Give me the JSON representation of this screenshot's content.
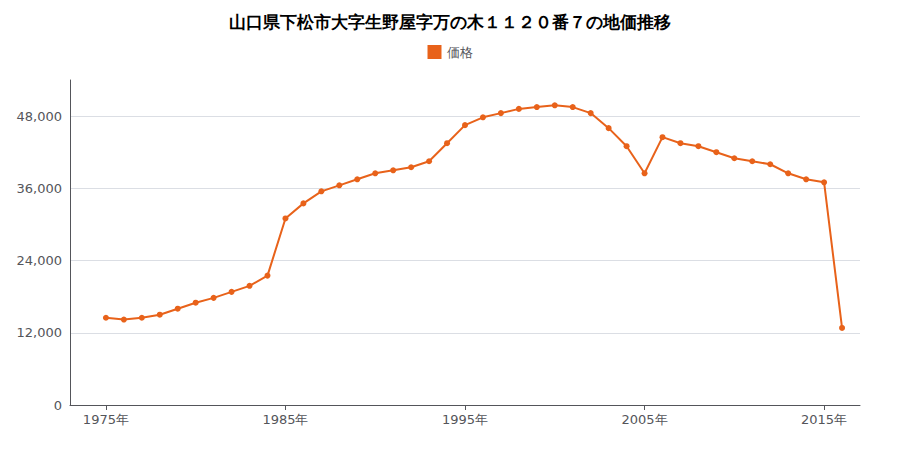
{
  "chart_data": {
    "type": "line",
    "title": "山口県下松市大字生野屋字万の木１１２０番７の地価推移",
    "x": [
      1975,
      1976,
      1977,
      1978,
      1979,
      1980,
      1981,
      1982,
      1983,
      1984,
      1985,
      1986,
      1987,
      1988,
      1989,
      1990,
      1991,
      1992,
      1993,
      1994,
      1995,
      1996,
      1997,
      1998,
      1999,
      2000,
      2001,
      2002,
      2003,
      2004,
      2005,
      2006,
      2007,
      2008,
      2009,
      2010,
      2011,
      2012,
      2013,
      2014,
      2015,
      2016
    ],
    "series": [
      {
        "name": "価格",
        "color": "#E8621A",
        "marker": "circle",
        "values": [
          14500,
          14200,
          14500,
          15000,
          16000,
          17000,
          17800,
          18800,
          19800,
          21500,
          31000,
          33500,
          35500,
          36500,
          37500,
          38500,
          39000,
          39500,
          40500,
          43500,
          46500,
          47800,
          48500,
          49200,
          49500,
          49800,
          49500,
          48500,
          46000,
          43000,
          38500,
          44500,
          43500,
          43000,
          42000,
          41000,
          40500,
          40000,
          38500,
          37500,
          37000,
          12800
        ]
      }
    ],
    "xlim": [
      1973,
      2017
    ],
    "xticks": [
      {
        "value": 1975,
        "label": "1975年"
      },
      {
        "value": 1985,
        "label": "1985年"
      },
      {
        "value": 1995,
        "label": "1995年"
      },
      {
        "value": 2005,
        "label": "2005年"
      },
      {
        "value": 2015,
        "label": "2015年"
      }
    ],
    "ylim": [
      0,
      54000
    ],
    "yticks": [
      0,
      {
        "value": 12000,
        "label": "12,000"
      },
      {
        "value": 24000,
        "label": "24,000"
      },
      {
        "value": 36000,
        "label": "36,000"
      },
      {
        "value": 48000,
        "label": "48,000"
      }
    ],
    "grid": "y",
    "legend": "top"
  }
}
